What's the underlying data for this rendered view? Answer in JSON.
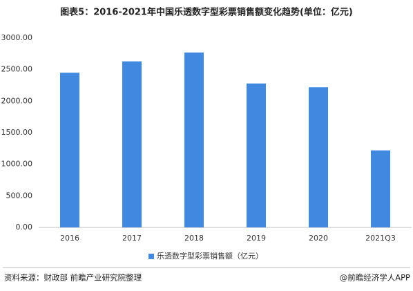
{
  "chart_data": {
    "type": "bar",
    "title": "图表5：2016-2021年中国乐透数字型彩票销售额变化趋势(单位：亿元)",
    "categories": [
      "2016",
      "2017",
      "2018",
      "2019",
      "2020",
      "2021Q3"
    ],
    "series": [
      {
        "name": "乐透数字型彩票销售额（亿元）",
        "color": "#4189e0",
        "values": [
          2450,
          2630,
          2770,
          2280,
          2220,
          1220
        ]
      }
    ],
    "ylim": [
      0,
      3000
    ],
    "yticks": [
      {
        "value": 0,
        "label": "0.00"
      },
      {
        "value": 500,
        "label": "500.00"
      },
      {
        "value": 1000,
        "label": "1000.00"
      },
      {
        "value": 1500,
        "label": "1500.00"
      },
      {
        "value": 2000,
        "label": "2000.00"
      },
      {
        "value": 2500,
        "label": "2500.00"
      },
      {
        "value": 3000,
        "label": "3000.00"
      }
    ],
    "grid": false,
    "legend": "bottom",
    "source": "资料来源：财政部 前瞻产业研究院整理",
    "credit": "@前瞻经济学人APP"
  }
}
